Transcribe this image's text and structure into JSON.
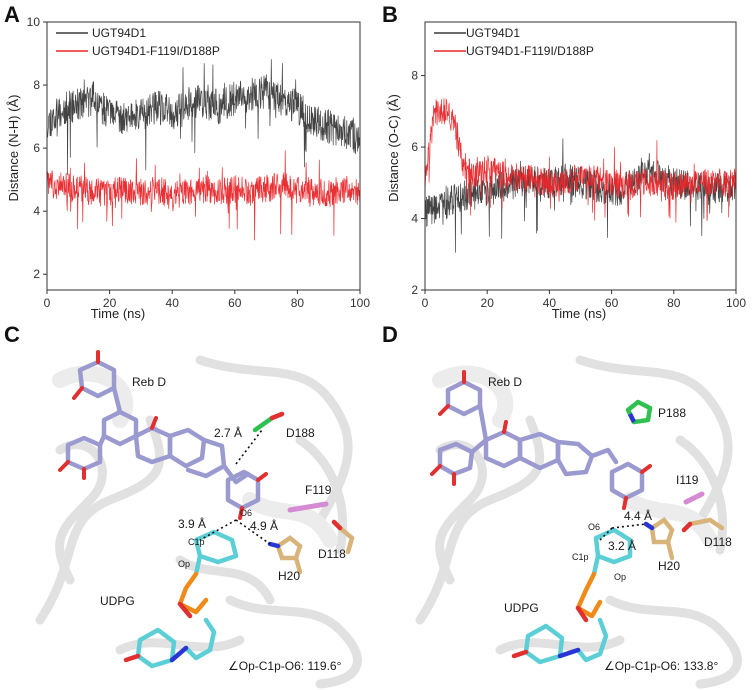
{
  "panels": {
    "A": "A",
    "B": "B",
    "C": "C",
    "D": "D"
  },
  "chart_data": [
    {
      "type": "line",
      "panel": "A",
      "xlabel": "Time (ns)",
      "ylabel": "Distance (N-H) (Å)",
      "xlim": [
        0,
        100
      ],
      "ylim": [
        1.5,
        10
      ],
      "xticks": [
        "0",
        "20",
        "40",
        "60",
        "80",
        "100"
      ],
      "yticks": [
        "2",
        "4",
        "6",
        "8",
        "10"
      ],
      "legend_position": "top-left",
      "series": [
        {
          "name": "UGT94D1",
          "color": "#3a3a3a",
          "x": [
            0,
            5,
            10,
            15,
            20,
            25,
            30,
            35,
            40,
            45,
            50,
            55,
            60,
            65,
            70,
            75,
            80,
            85,
            90,
            95,
            100
          ],
          "y": [
            6.8,
            7.2,
            7.4,
            7.6,
            7.0,
            6.9,
            7.2,
            7.3,
            7.1,
            7.4,
            7.5,
            7.3,
            7.6,
            7.7,
            7.8,
            7.5,
            7.3,
            6.8,
            6.7,
            6.5,
            6.3
          ],
          "noise": 0.55
        },
        {
          "name": "UGT94D1-F119I/D188P",
          "color": "#e8262a",
          "x": [
            0,
            5,
            10,
            15,
            20,
            25,
            30,
            35,
            40,
            45,
            50,
            55,
            60,
            65,
            70,
            75,
            80,
            85,
            90,
            95,
            100
          ],
          "y": [
            4.9,
            4.8,
            4.7,
            4.6,
            4.6,
            4.7,
            4.6,
            4.7,
            4.5,
            4.6,
            4.7,
            4.6,
            4.7,
            4.6,
            4.7,
            4.8,
            4.7,
            4.6,
            4.6,
            4.7,
            4.6
          ],
          "noise": 0.45
        }
      ]
    },
    {
      "type": "line",
      "panel": "B",
      "xlabel": "Time (ns)",
      "ylabel": "Distance (O-C) (Å)",
      "xlim": [
        0,
        100
      ],
      "ylim": [
        2,
        9.5
      ],
      "xticks": [
        "0",
        "20",
        "40",
        "60",
        "80",
        "100"
      ],
      "yticks": [
        "2",
        "4",
        "6",
        "8"
      ],
      "legend_position": "top-left",
      "series": [
        {
          "name": "UGT94D1",
          "color": "#3a3a3a",
          "x": [
            0,
            5,
            10,
            15,
            20,
            25,
            30,
            35,
            40,
            45,
            50,
            55,
            60,
            65,
            70,
            75,
            80,
            85,
            90,
            95,
            100
          ],
          "y": [
            4.2,
            4.3,
            4.6,
            4.7,
            4.8,
            4.9,
            5.0,
            5.1,
            5.0,
            5.1,
            5.0,
            4.9,
            4.7,
            4.9,
            5.3,
            5.2,
            5.0,
            4.9,
            4.8,
            4.9,
            4.9
          ],
          "noise": 0.45
        },
        {
          "name": "UGT94D1-F119I/D188P",
          "color": "#e8262a",
          "x": [
            0,
            3,
            6,
            9,
            12,
            15,
            20,
            25,
            30,
            35,
            40,
            45,
            50,
            55,
            60,
            65,
            70,
            75,
            80,
            85,
            90,
            95,
            100
          ],
          "y": [
            5.0,
            7.0,
            7.0,
            6.8,
            5.6,
            5.2,
            5.4,
            5.2,
            5.1,
            5.1,
            5.0,
            5.0,
            5.2,
            5.1,
            5.0,
            4.9,
            5.0,
            5.0,
            4.9,
            4.9,
            5.0,
            5.0,
            5.0
          ],
          "noise": 0.4
        }
      ]
    }
  ],
  "structures": {
    "C": {
      "ligand": "Reb D",
      "residue_1": "D188",
      "residue_2": "F119",
      "residue_3": "D118",
      "residue_4": "H20",
      "sugar": "UDPG",
      "dist_1": "2.7 Å",
      "dist_2": "3.9 Å",
      "dist_3": "4.9 Å",
      "atom_o6": "O6",
      "atom_c1p": "C1p",
      "atom_op": "Op",
      "angle": "∠Op-C1p-O6: 119.6°"
    },
    "D": {
      "ligand": "Reb D",
      "residue_1": "P188",
      "residue_2": "I119",
      "residue_3": "D118",
      "residue_4": "H20",
      "sugar": "UDPG",
      "dist_1": "4.4 Å",
      "dist_2": "3.2 Å",
      "atom_o6": "O6",
      "atom_c1p": "C1p",
      "atom_op": "Op",
      "angle": "∠Op-C1p-O6: 133.8°"
    }
  },
  "colors": {
    "protein": "#e4e4e4",
    "rebd": "#9a9ad0",
    "udpg": "#5ccfd6",
    "phosphate": "#f08a18",
    "oxygen": "#e03030",
    "nitrogen": "#2a36d4",
    "residue_d188": "#2fc050",
    "residue_f119": "#d58ad4",
    "residue_tan": "#d8b47a"
  }
}
